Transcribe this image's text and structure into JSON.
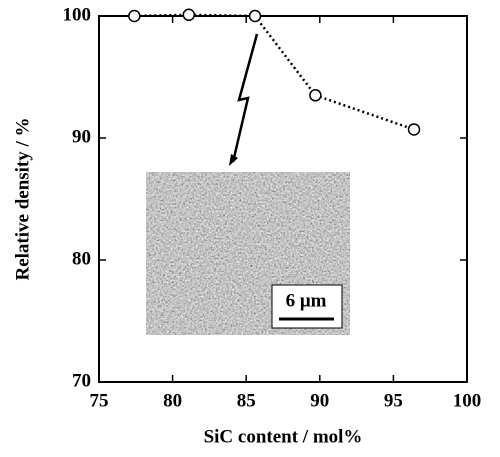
{
  "chart_data": {
    "type": "line",
    "x_label": "SiC content / mol%",
    "y_label": "Relative density / %",
    "x": [
      77.4,
      81.1,
      85.6,
      89.7,
      96.4
    ],
    "series": [
      {
        "values": [
          100,
          100.1,
          100,
          93.5,
          90.7
        ],
        "color": "#000000"
      }
    ],
    "xlim": [
      75,
      100
    ],
    "xticks": [
      75,
      80,
      85,
      90,
      95,
      100
    ],
    "ylim": [
      70,
      100
    ],
    "yticks": [
      70,
      80,
      90,
      100
    ],
    "inset_scale_label": "6 μm"
  }
}
